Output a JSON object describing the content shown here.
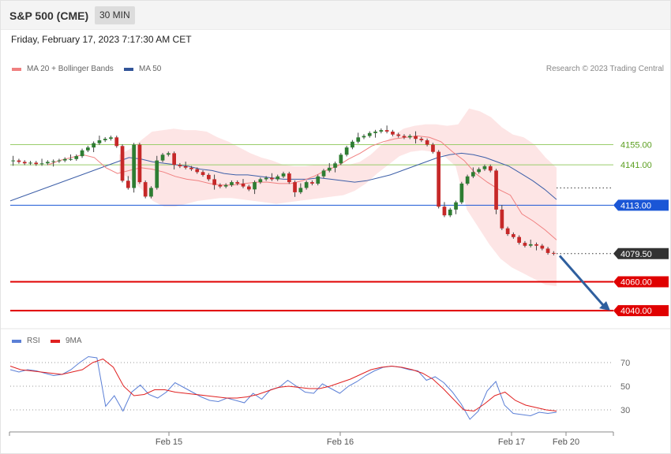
{
  "header": {
    "title": "S&P 500 (CME)",
    "timeframe": "30 MIN"
  },
  "date_text": "Friday, February 17, 2023 7:17:30 AM CET",
  "legend": [
    {
      "label": "MA 20 + Bollinger Bands",
      "color": "#f08080"
    },
    {
      "label": "MA 50",
      "color": "#335599"
    }
  ],
  "copyright": "Research © 2023 Trading Central",
  "rsi_legend": [
    {
      "label": "RSI",
      "color": "#5b7fd6"
    },
    {
      "label": "9MA",
      "color": "#e02020"
    }
  ],
  "colors": {
    "up": "#2e7d32",
    "down": "#c62828",
    "ma50": "#3d5fa8",
    "ma20": "#f08080",
    "band": "#fde0e0",
    "resistance": "#9acd6b",
    "pivot": "#1a56d6",
    "support": "#e00000",
    "arrow": "#2f5f9e"
  },
  "chart_data": [
    {
      "type": "candlestick",
      "title": "S&P 500 (CME)",
      "x_labels": [
        "Feb 15",
        "Feb 16",
        "Feb 17",
        "Feb 20"
      ],
      "ylim": [
        4033,
        4200
      ],
      "levels": [
        {
          "value": 4155.0,
          "label": "4155.00",
          "kind": "resistance"
        },
        {
          "value": 4141.0,
          "label": "4141.00",
          "kind": "resistance"
        },
        {
          "value": 4113.0,
          "label": "4113.00",
          "kind": "pivot"
        },
        {
          "value": 4079.5,
          "label": "4079.50",
          "kind": "last"
        },
        {
          "value": 4060.0,
          "label": "4060.00",
          "kind": "support"
        },
        {
          "value": 4040.0,
          "label": "4040.00",
          "kind": "support"
        }
      ],
      "closes": [
        4144,
        4143,
        4142,
        4142.5,
        4141.5,
        4142,
        4143,
        4143.5,
        4144,
        4145,
        4145,
        4147,
        4151,
        4153,
        4156,
        4158,
        4159,
        4160,
        4154,
        4130,
        4125,
        4155,
        4129,
        4119,
        4125,
        4144,
        4148,
        4149,
        4141,
        4140,
        4139,
        4138,
        4136,
        4134,
        4131,
        4127,
        4126,
        4127,
        4129,
        4128,
        4126,
        4124,
        4129,
        4131,
        4132,
        4131,
        4133,
        4135,
        4129,
        4122,
        4125,
        4129,
        4128,
        4133,
        4137,
        4139,
        4142,
        4148,
        4153,
        4157,
        4160,
        4161,
        4163,
        4164,
        4165,
        4164,
        4162,
        4161,
        4160,
        4161,
        4159,
        4158,
        4155,
        4150,
        4112,
        4106,
        4110,
        4115,
        4128,
        4133,
        4136,
        4138,
        4140,
        4137,
        4110,
        4097,
        4093,
        4091,
        4087,
        4085,
        4086,
        4085,
        4083,
        4080,
        4079.5
      ],
      "ma50": [
        4116,
        4119,
        4122,
        4125,
        4128,
        4131,
        4134,
        4137,
        4140,
        4143,
        4146,
        4145,
        4143,
        4142,
        4141,
        4140,
        4138,
        4137,
        4135,
        4134,
        4134,
        4133,
        4132,
        4131,
        4131,
        4131,
        4132,
        4131,
        4130,
        4129,
        4130,
        4132,
        4134,
        4137,
        4140,
        4143,
        4146,
        4148,
        4149,
        4148,
        4146,
        4143,
        4140,
        4135,
        4130,
        4124,
        4117
      ],
      "ma20": [
        4141,
        4144,
        4146,
        4148,
        4146,
        4139,
        4135,
        4137,
        4139,
        4138,
        4136,
        4133,
        4131,
        4130,
        4128,
        4127,
        4127,
        4128,
        4129,
        4129,
        4128,
        4128,
        4130,
        4133,
        4137,
        4140,
        4145,
        4149,
        4154,
        4157,
        4159,
        4160,
        4161,
        4160,
        4157,
        4150,
        4144,
        4135,
        4129,
        4124,
        4120,
        4107,
        4102,
        4096,
        4089
      ],
      "bb_upper": [
        4148,
        4152,
        4158,
        4164,
        4165,
        4166,
        4165,
        4165,
        4164,
        4160,
        4157,
        4153,
        4149,
        4146,
        4144,
        4141,
        4140,
        4140,
        4141,
        4141,
        4141,
        4141,
        4143,
        4148,
        4155,
        4161,
        4166,
        4168,
        4169,
        4169,
        4168,
        4169,
        4180,
        4178,
        4174,
        4167,
        4162,
        4160,
        4155,
        4146,
        4139
      ],
      "bb_lower": [
        4136,
        4131,
        4124,
        4116,
        4112,
        4112,
        4114,
        4116,
        4117,
        4118,
        4118,
        4117,
        4116,
        4115,
        4114,
        4115,
        4116,
        4117,
        4118,
        4119,
        4120,
        4123,
        4128,
        4135,
        4141,
        4147,
        4150,
        4151,
        4150,
        4147,
        4140,
        4110,
        4098,
        4086,
        4076,
        4070,
        4066,
        4062,
        4058,
        4057
      ]
    },
    {
      "type": "line",
      "title": "RSI",
      "ylim": [
        20,
        80
      ],
      "y_ticks": [
        70,
        50,
        30
      ],
      "series": [
        {
          "name": "RSI",
          "values": [
            64,
            62,
            64,
            63,
            61,
            59,
            60,
            64,
            70,
            75,
            74,
            33,
            42,
            29,
            45,
            51,
            43,
            40,
            45,
            53,
            49,
            45,
            41,
            38,
            37,
            40,
            38,
            36,
            44,
            39,
            47,
            49,
            55,
            50,
            45,
            44,
            52,
            48,
            44,
            50,
            54,
            59,
            63,
            66,
            67,
            66,
            64,
            63,
            55,
            58,
            53,
            45,
            35,
            22,
            29,
            46,
            54,
            34,
            27,
            26,
            25,
            28,
            27,
            28
          ]
        },
        {
          "name": "9MA",
          "values": [
            67,
            64,
            63,
            62,
            61,
            60,
            62,
            64,
            70,
            73,
            66,
            50,
            42,
            43,
            47,
            47,
            45,
            44,
            43,
            42,
            41,
            40,
            40,
            41,
            43,
            46,
            49,
            50,
            49,
            48,
            48,
            50,
            53,
            56,
            60,
            64,
            66,
            67,
            66,
            64,
            61,
            56,
            48,
            39,
            30,
            29,
            35,
            42,
            45,
            38,
            34,
            32,
            30,
            29
          ]
        }
      ]
    }
  ]
}
